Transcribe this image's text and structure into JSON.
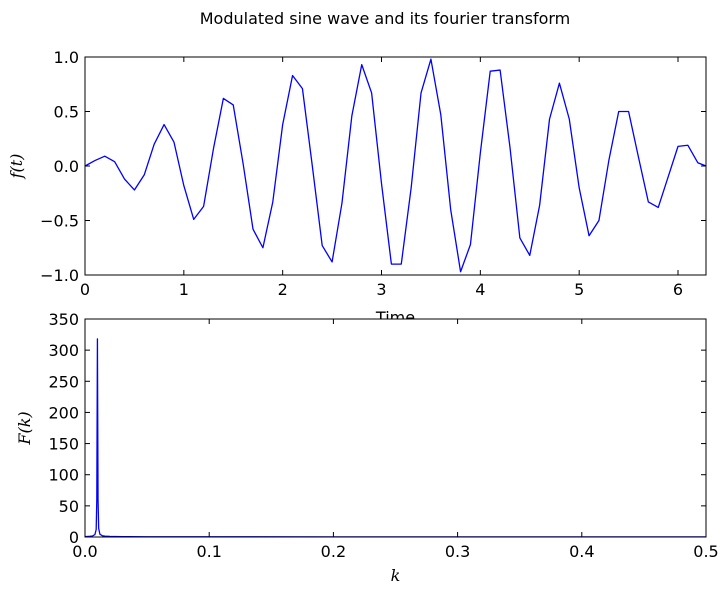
{
  "figure": {
    "title": "Modulated sine wave and its fourier transform"
  },
  "chart_data": [
    {
      "type": "line",
      "title": "",
      "xlabel": "Time",
      "ylabel": "$f(t)$",
      "xlim": [
        0,
        6.2832
      ],
      "ylim": [
        -1.0,
        1.0
      ],
      "xticks": [
        "0",
        "1",
        "2",
        "3",
        "4",
        "5",
        "6"
      ],
      "yticks": [
        "−1.0",
        "−0.5",
        "0.0",
        "0.5",
        "1.0"
      ],
      "grid": false,
      "line_color": "#0000ff",
      "series": [
        {
          "name": "",
          "x": [
            0.0,
            0.1,
            0.2,
            0.3,
            0.4,
            0.5,
            0.6,
            0.7,
            0.8,
            0.9,
            1.0,
            1.1,
            1.2,
            1.3,
            1.4,
            1.5,
            1.6,
            1.7,
            1.8,
            1.9,
            2.0,
            2.1,
            2.2,
            2.3,
            2.4,
            2.5,
            2.6,
            2.7,
            2.8,
            2.9,
            3.0,
            3.1,
            3.2,
            3.3,
            3.4,
            3.5,
            3.6,
            3.7,
            3.8,
            3.9,
            4.0,
            4.1,
            4.2,
            4.3,
            4.4,
            4.5,
            4.6,
            4.7,
            4.8,
            4.9,
            5.0,
            5.1,
            5.2,
            5.3,
            5.4,
            5.5,
            5.6,
            5.7,
            5.8,
            5.9,
            6.0,
            6.1,
            6.2,
            6.2832
          ],
          "y": [
            0.0,
            0.05,
            0.09,
            0.04,
            -0.12,
            -0.22,
            -0.08,
            0.2,
            0.38,
            0.22,
            -0.18,
            -0.49,
            -0.37,
            0.16,
            0.62,
            0.56,
            0.02,
            -0.58,
            -0.75,
            -0.33,
            0.38,
            0.83,
            0.71,
            0.0,
            -0.73,
            -0.88,
            -0.34,
            0.46,
            0.93,
            0.67,
            -0.16,
            -0.9,
            -0.9,
            -0.2,
            0.67,
            0.98,
            0.47,
            -0.4,
            -0.97,
            -0.72,
            0.12,
            0.87,
            0.88,
            0.17,
            -0.66,
            -0.82,
            -0.36,
            0.43,
            0.76,
            0.43,
            -0.2,
            -0.64,
            -0.5,
            0.05,
            0.5,
            0.5,
            0.08,
            -0.33,
            -0.38,
            -0.1,
            0.18,
            0.19,
            0.03,
            0.0
          ]
        }
      ]
    },
    {
      "type": "line",
      "title": "",
      "xlabel": "$k$",
      "ylabel": "$F(k)$",
      "xlim": [
        0.0,
        0.5
      ],
      "ylim": [
        0,
        350
      ],
      "xticks": [
        "0.0",
        "0.1",
        "0.2",
        "0.3",
        "0.4",
        "0.5"
      ],
      "yticks": [
        "0",
        "50",
        "100",
        "150",
        "200",
        "250",
        "300",
        "350"
      ],
      "grid": false,
      "line_color": "#0000ff",
      "series": [
        {
          "name": "",
          "x": [
            0.0,
            0.002,
            0.004,
            0.006,
            0.008,
            0.009,
            0.0095,
            0.01,
            0.0105,
            0.011,
            0.012,
            0.014,
            0.016,
            0.02,
            0.03,
            0.05,
            0.1,
            0.2,
            0.3,
            0.4,
            0.5
          ],
          "y": [
            0.8,
            0.9,
            1.1,
            1.6,
            4.0,
            12.0,
            60.0,
            318.0,
            60.0,
            14.0,
            4.5,
            2.0,
            1.3,
            0.9,
            0.6,
            0.4,
            0.3,
            0.2,
            0.2,
            0.2,
            0.2
          ]
        }
      ]
    }
  ]
}
